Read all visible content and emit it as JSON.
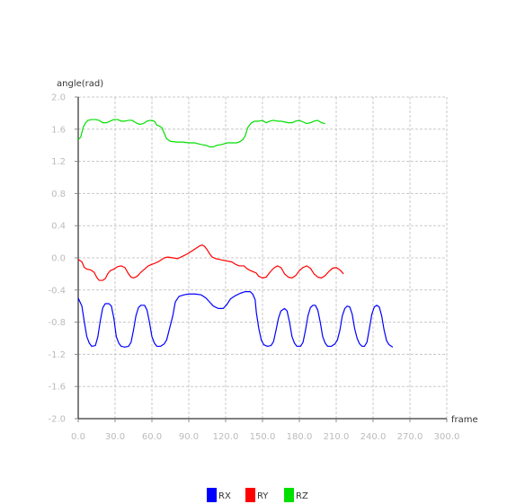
{
  "chart_data": {
    "type": "line",
    "xlabel": "frame",
    "ylabel": "angle(rad)",
    "xlim": [
      0,
      300
    ],
    "ylim": [
      -2.0,
      2.0
    ],
    "xticks": [
      "0.0",
      "30.0",
      "60.0",
      "90.0",
      "120.0",
      "150.0",
      "180.0",
      "210.0",
      "240.0",
      "270.0",
      "300.0"
    ],
    "yticks": [
      "2.0",
      "1.6",
      "1.2",
      "0.8",
      "0.4",
      "0.0",
      "-0.4",
      "-0.8",
      "-1.2",
      "-1.6",
      "-2.0"
    ],
    "grid": true,
    "legend_position": "bottom",
    "series": [
      {
        "name": "RX",
        "color": "#0000ff",
        "points": [
          [
            0,
            -0.5
          ],
          [
            3,
            -0.6
          ],
          [
            5,
            -0.8
          ],
          [
            7,
            -0.98
          ],
          [
            9,
            -1.06
          ],
          [
            11,
            -1.1
          ],
          [
            14,
            -1.09
          ],
          [
            16,
            -0.98
          ],
          [
            18,
            -0.78
          ],
          [
            20,
            -0.62
          ],
          [
            22,
            -0.57
          ],
          [
            25,
            -0.57
          ],
          [
            27,
            -0.6
          ],
          [
            29,
            -0.75
          ],
          [
            31,
            -0.98
          ],
          [
            33,
            -1.06
          ],
          [
            35,
            -1.1
          ],
          [
            38,
            -1.11
          ],
          [
            41,
            -1.1
          ],
          [
            43,
            -1.05
          ],
          [
            45,
            -0.9
          ],
          [
            47,
            -0.72
          ],
          [
            49,
            -0.62
          ],
          [
            51,
            -0.59
          ],
          [
            54,
            -0.59
          ],
          [
            56,
            -0.65
          ],
          [
            58,
            -0.8
          ],
          [
            60,
            -0.98
          ],
          [
            62,
            -1.06
          ],
          [
            64,
            -1.1
          ],
          [
            67,
            -1.1
          ],
          [
            70,
            -1.07
          ],
          [
            72,
            -1.02
          ],
          [
            74,
            -0.9
          ],
          [
            77,
            -0.72
          ],
          [
            79,
            -0.55
          ],
          [
            82,
            -0.48
          ],
          [
            86,
            -0.46
          ],
          [
            90,
            -0.45
          ],
          [
            95,
            -0.45
          ],
          [
            100,
            -0.46
          ],
          [
            104,
            -0.5
          ],
          [
            107,
            -0.55
          ],
          [
            110,
            -0.6
          ],
          [
            114,
            -0.63
          ],
          [
            118,
            -0.63
          ],
          [
            121,
            -0.58
          ],
          [
            124,
            -0.51
          ],
          [
            128,
            -0.47
          ],
          [
            132,
            -0.44
          ],
          [
            136,
            -0.42
          ],
          [
            140,
            -0.42
          ],
          [
            142,
            -0.45
          ],
          [
            144,
            -0.52
          ],
          [
            145,
            -0.68
          ],
          [
            147,
            -0.88
          ],
          [
            149,
            -1.02
          ],
          [
            151,
            -1.08
          ],
          [
            154,
            -1.1
          ],
          [
            157,
            -1.09
          ],
          [
            159,
            -1.04
          ],
          [
            161,
            -0.9
          ],
          [
            163,
            -0.75
          ],
          [
            165,
            -0.66
          ],
          [
            168,
            -0.63
          ],
          [
            170,
            -0.66
          ],
          [
            172,
            -0.8
          ],
          [
            174,
            -0.98
          ],
          [
            176,
            -1.06
          ],
          [
            178,
            -1.1
          ],
          [
            181,
            -1.1
          ],
          [
            183,
            -1.05
          ],
          [
            185,
            -0.9
          ],
          [
            187,
            -0.72
          ],
          [
            189,
            -0.62
          ],
          [
            191,
            -0.59
          ],
          [
            193,
            -0.59
          ],
          [
            195,
            -0.65
          ],
          [
            197,
            -0.8
          ],
          [
            199,
            -0.98
          ],
          [
            201,
            -1.06
          ],
          [
            203,
            -1.1
          ],
          [
            206,
            -1.1
          ],
          [
            209,
            -1.07
          ],
          [
            211,
            -1.02
          ],
          [
            213,
            -0.9
          ],
          [
            215,
            -0.72
          ],
          [
            217,
            -0.63
          ],
          [
            219,
            -0.6
          ],
          [
            221,
            -0.61
          ],
          [
            223,
            -0.7
          ],
          [
            225,
            -0.88
          ],
          [
            227,
            -1.0
          ],
          [
            229,
            -1.07
          ],
          [
            231,
            -1.1
          ],
          [
            233,
            -1.1
          ],
          [
            235,
            -1.05
          ],
          [
            237,
            -0.88
          ],
          [
            239,
            -0.7
          ],
          [
            241,
            -0.61
          ],
          [
            243,
            -0.59
          ],
          [
            245,
            -0.61
          ],
          [
            247,
            -0.72
          ],
          [
            249,
            -0.9
          ],
          [
            251,
            -1.03
          ],
          [
            253,
            -1.08
          ],
          [
            256,
            -1.11
          ]
        ]
      },
      {
        "name": "RY",
        "color": "#ff0000",
        "points": [
          [
            0,
            -0.02
          ],
          [
            3,
            -0.05
          ],
          [
            5,
            -0.12
          ],
          [
            7,
            -0.14
          ],
          [
            10,
            -0.15
          ],
          [
            13,
            -0.18
          ],
          [
            15,
            -0.24
          ],
          [
            17,
            -0.28
          ],
          [
            20,
            -0.28
          ],
          [
            22,
            -0.26
          ],
          [
            24,
            -0.2
          ],
          [
            26,
            -0.16
          ],
          [
            29,
            -0.14
          ],
          [
            32,
            -0.11
          ],
          [
            35,
            -0.1
          ],
          [
            38,
            -0.12
          ],
          [
            41,
            -0.2
          ],
          [
            43,
            -0.24
          ],
          [
            45,
            -0.25
          ],
          [
            48,
            -0.23
          ],
          [
            51,
            -0.18
          ],
          [
            54,
            -0.14
          ],
          [
            57,
            -0.1
          ],
          [
            60,
            -0.08
          ],
          [
            62,
            -0.07
          ],
          [
            65,
            -0.05
          ],
          [
            67,
            -0.03
          ],
          [
            70,
            0.0
          ],
          [
            73,
            0.01
          ],
          [
            77,
            0.0
          ],
          [
            81,
            -0.01
          ],
          [
            85,
            0.02
          ],
          [
            89,
            0.05
          ],
          [
            93,
            0.09
          ],
          [
            96,
            0.12
          ],
          [
            99,
            0.15
          ],
          [
            101,
            0.16
          ],
          [
            103,
            0.14
          ],
          [
            105,
            0.1
          ],
          [
            107,
            0.05
          ],
          [
            109,
            0.01
          ],
          [
            112,
            -0.01
          ],
          [
            115,
            -0.02
          ],
          [
            118,
            -0.03
          ],
          [
            121,
            -0.04
          ],
          [
            125,
            -0.05
          ],
          [
            128,
            -0.08
          ],
          [
            131,
            -0.1
          ],
          [
            135,
            -0.1
          ],
          [
            137,
            -0.13
          ],
          [
            139,
            -0.15
          ],
          [
            142,
            -0.17
          ],
          [
            145,
            -0.19
          ],
          [
            147,
            -0.23
          ],
          [
            150,
            -0.25
          ],
          [
            153,
            -0.24
          ],
          [
            156,
            -0.18
          ],
          [
            159,
            -0.13
          ],
          [
            162,
            -0.1
          ],
          [
            165,
            -0.12
          ],
          [
            168,
            -0.2
          ],
          [
            171,
            -0.24
          ],
          [
            174,
            -0.25
          ],
          [
            177,
            -0.22
          ],
          [
            180,
            -0.16
          ],
          [
            183,
            -0.12
          ],
          [
            186,
            -0.1
          ],
          [
            189,
            -0.13
          ],
          [
            192,
            -0.2
          ],
          [
            195,
            -0.24
          ],
          [
            198,
            -0.25
          ],
          [
            201,
            -0.22
          ],
          [
            204,
            -0.17
          ],
          [
            207,
            -0.13
          ],
          [
            210,
            -0.12
          ],
          [
            213,
            -0.15
          ],
          [
            216,
            -0.2
          ]
        ]
      },
      {
        "name": "RZ",
        "color": "#00e000",
        "points": [
          [
            0,
            1.47
          ],
          [
            2,
            1.5
          ],
          [
            4,
            1.62
          ],
          [
            6,
            1.68
          ],
          [
            8,
            1.71
          ],
          [
            11,
            1.72
          ],
          [
            14,
            1.72
          ],
          [
            17,
            1.71
          ],
          [
            20,
            1.68
          ],
          [
            23,
            1.68
          ],
          [
            26,
            1.7
          ],
          [
            29,
            1.72
          ],
          [
            32,
            1.72
          ],
          [
            35,
            1.7
          ],
          [
            38,
            1.7
          ],
          [
            41,
            1.71
          ],
          [
            44,
            1.71
          ],
          [
            47,
            1.68
          ],
          [
            50,
            1.66
          ],
          [
            53,
            1.67
          ],
          [
            56,
            1.7
          ],
          [
            59,
            1.71
          ],
          [
            62,
            1.7
          ],
          [
            64,
            1.65
          ],
          [
            66,
            1.64
          ],
          [
            68,
            1.62
          ],
          [
            70,
            1.55
          ],
          [
            72,
            1.48
          ],
          [
            75,
            1.45
          ],
          [
            80,
            1.44
          ],
          [
            85,
            1.44
          ],
          [
            90,
            1.43
          ],
          [
            95,
            1.43
          ],
          [
            100,
            1.41
          ],
          [
            104,
            1.4
          ],
          [
            107,
            1.38
          ],
          [
            110,
            1.38
          ],
          [
            113,
            1.4
          ],
          [
            117,
            1.41
          ],
          [
            121,
            1.43
          ],
          [
            125,
            1.43
          ],
          [
            129,
            1.43
          ],
          [
            131,
            1.44
          ],
          [
            134,
            1.47
          ],
          [
            136,
            1.52
          ],
          [
            138,
            1.62
          ],
          [
            141,
            1.68
          ],
          [
            144,
            1.7
          ],
          [
            147,
            1.7
          ],
          [
            150,
            1.71
          ],
          [
            153,
            1.68
          ],
          [
            156,
            1.7
          ],
          [
            159,
            1.71
          ],
          [
            162,
            1.7
          ],
          [
            165,
            1.7
          ],
          [
            168,
            1.69
          ],
          [
            171,
            1.68
          ],
          [
            174,
            1.68
          ],
          [
            177,
            1.7
          ],
          [
            180,
            1.71
          ],
          [
            183,
            1.69
          ],
          [
            186,
            1.67
          ],
          [
            189,
            1.68
          ],
          [
            192,
            1.7
          ],
          [
            195,
            1.71
          ],
          [
            198,
            1.68
          ],
          [
            201,
            1.67
          ]
        ]
      }
    ]
  }
}
